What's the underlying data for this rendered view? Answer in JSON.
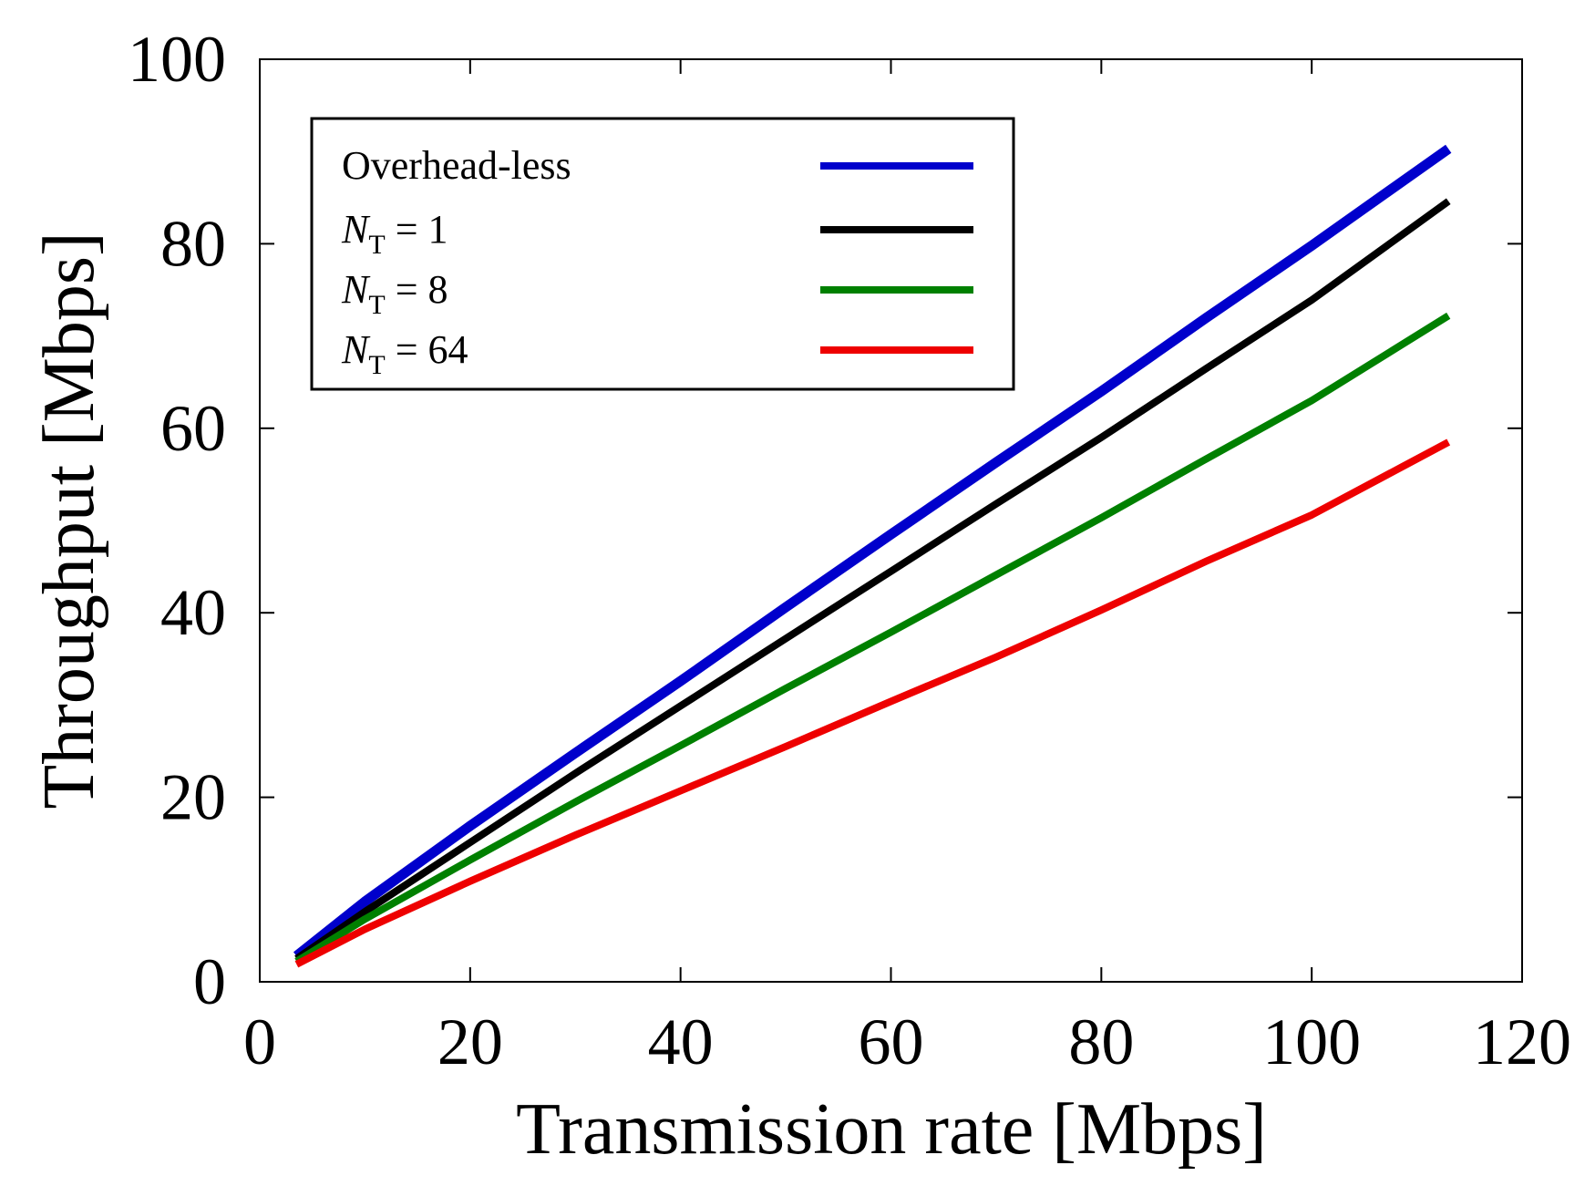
{
  "chart_data": {
    "type": "line",
    "title": "",
    "xlabel": "Transmission rate [Mbps]",
    "ylabel": "Throughput [Mbps]",
    "xlim": [
      0,
      120
    ],
    "ylim": [
      0,
      100
    ],
    "xticks": [
      0,
      20,
      40,
      60,
      80,
      100,
      120
    ],
    "yticks": [
      0,
      20,
      40,
      60,
      80,
      100
    ],
    "xtick_labels": [
      "0",
      "20",
      "40",
      "60",
      "80",
      "100",
      "120"
    ],
    "ytick_labels": [
      "0",
      "20",
      "40",
      "60",
      "80",
      "100"
    ],
    "grid": false,
    "legend_position": "top-left",
    "x": [
      3.5,
      10,
      20,
      30,
      40,
      50,
      60,
      70,
      80,
      90,
      100,
      113
    ],
    "series": [
      {
        "name": "Overhead-less",
        "name_parts": {
          "pre": "Overhead-less",
          "sub": "",
          "post": ""
        },
        "color": "#0000cc",
        "values": [
          2.8,
          8.7,
          16.9,
          24.8,
          32.6,
          40.6,
          48.5,
          56.3,
          64.0,
          72.0,
          79.8,
          90.3
        ]
      },
      {
        "name": "NT = 1",
        "name_parts": {
          "pre": "N",
          "sub": "T",
          "post": " = 1"
        },
        "color": "#000000",
        "values": [
          2.5,
          7.6,
          15.1,
          22.6,
          29.9,
          37.2,
          44.5,
          51.8,
          59.0,
          66.5,
          73.9,
          84.6
        ]
      },
      {
        "name": "NT = 8",
        "name_parts": {
          "pre": "N",
          "sub": "T",
          "post": " = 8"
        },
        "color": "#008000",
        "values": [
          2.2,
          6.8,
          13.2,
          19.5,
          25.6,
          31.8,
          37.9,
          44.1,
          50.3,
          56.7,
          63.0,
          72.2
        ]
      },
      {
        "name": "NT = 64",
        "name_parts": {
          "pre": "N",
          "sub": "T",
          "post": " = 64"
        },
        "color": "#ee0000",
        "values": [
          1.9,
          5.7,
          10.9,
          15.9,
          20.7,
          25.5,
          30.4,
          35.2,
          40.3,
          45.6,
          50.6,
          58.5
        ]
      }
    ]
  }
}
